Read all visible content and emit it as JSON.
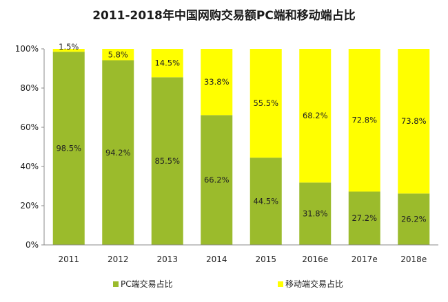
{
  "chart_data": {
    "type": "bar",
    "stacked": true,
    "title": "2011-2018年中国网购交易额PC端和移动端占比",
    "categories": [
      "2011",
      "2012",
      "2013",
      "2014",
      "2015",
      "2016e",
      "2017e",
      "2018e"
    ],
    "series": [
      {
        "name": "PC端交易占比",
        "color": "#9bbb2c",
        "values": [
          98.5,
          94.2,
          85.5,
          66.2,
          44.5,
          31.8,
          27.2,
          26.2
        ],
        "labels": [
          "98.5%",
          "94.2%",
          "85.5%",
          "66.2%",
          "44.5%",
          "31.8%",
          "27.2%",
          "26.2%"
        ]
      },
      {
        "name": "移动端交易占比",
        "color": "#ffff00",
        "values": [
          1.5,
          5.8,
          14.5,
          33.8,
          55.5,
          68.2,
          72.8,
          73.8
        ],
        "labels": [
          "1.5%",
          "5.8%",
          "14.5%",
          "33.8%",
          "55.5%",
          "68.2%",
          "72.8%",
          "73.8%"
        ]
      }
    ],
    "ylim": [
      0,
      100
    ],
    "yticks": [
      0,
      20,
      40,
      60,
      80,
      100
    ],
    "ytick_labels": [
      "0%",
      "20%",
      "40%",
      "60%",
      "80%",
      "100%"
    ],
    "grid": false,
    "legend_position": "bottom"
  }
}
